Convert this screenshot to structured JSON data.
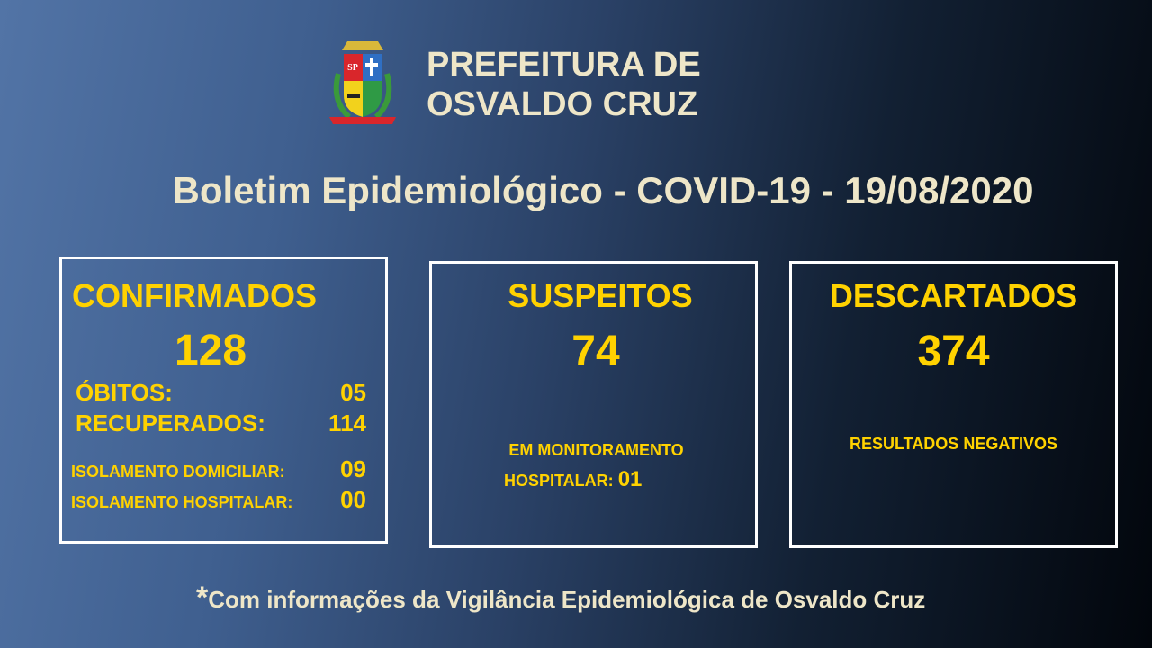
{
  "header": {
    "title_line1": "PREFEITURA DE",
    "title_line2": "OSVALDO CRUZ",
    "logo": "coat-of-arms"
  },
  "bulletin_title": "Boletim Epidemiológico - COVID-19 - 19/08/2020",
  "confirmados": {
    "label": "CONFIRMADOS",
    "value": "128",
    "obitos_label": "ÓBITOS:",
    "obitos_value": "05",
    "recuperados_label": "RECUPERADOS:",
    "recuperados_value": "114",
    "iso_dom_label": "ISOLAMENTO DOMICILIAR:",
    "iso_dom_value": "09",
    "iso_hosp_label": "ISOLAMENTO HOSPITALAR:",
    "iso_hosp_value": "00"
  },
  "suspeitos": {
    "label": "SUSPEITOS",
    "value": "74",
    "note_line1": "EM MONITORAMENTO",
    "note_line2": "HOSPITALAR:",
    "note_value": "01"
  },
  "descartados": {
    "label": "DESCARTADOS",
    "value": "374",
    "note": "RESULTADOS NEGATIVOS"
  },
  "footer": {
    "asterisk": "*",
    "text": "Com informações da Vigilância Epidemiológica de Osvaldo Cruz"
  },
  "colors": {
    "highlight": "#ffd200",
    "title": "#eee6c8",
    "border": "#ffffff"
  }
}
